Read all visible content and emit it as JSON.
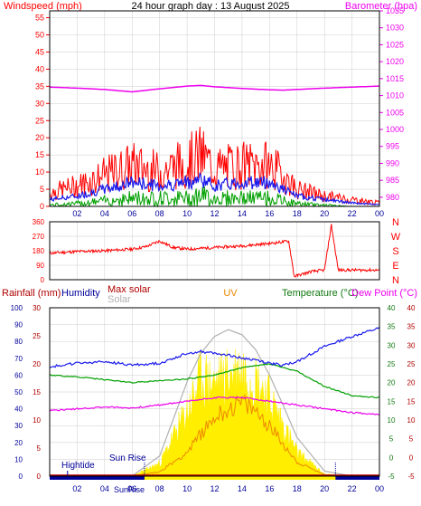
{
  "page": {
    "title": "24 hour graph day : 13 August 2025"
  },
  "colors": {
    "red": "#ff0000",
    "darkred": "#b00000",
    "magenta": "#ee00ee",
    "blue": "#1a1aee",
    "green": "#00a000",
    "darkgreen": "#107810",
    "navy": "#000099",
    "yellow": "#ffee00",
    "orange": "#ee8800",
    "gray": "#b0b0b0",
    "grid": "#cccccc"
  },
  "x_axis": {
    "ticks": [
      "02",
      "04",
      "06",
      "08",
      "10",
      "12",
      "14",
      "16",
      "18",
      "20",
      "22",
      "00"
    ]
  },
  "chart_data": [
    {
      "type": "line",
      "id": "wind-baro",
      "title": "24 hour graph day : 13 August 2025",
      "y_left_label": "Windspeed (mph)",
      "y_right_label": "Barometer (hpa)",
      "y_left_range": [
        0,
        57
      ],
      "y_left_ticks": [
        "55",
        "50",
        "45",
        "40",
        "35",
        "30",
        "25",
        "20",
        "15",
        "10",
        "5",
        "0"
      ],
      "y_left_tick_values": [
        55,
        50,
        45,
        40,
        35,
        30,
        25,
        20,
        15,
        10,
        5,
        0
      ],
      "y_right_range": [
        977.3,
        1035
      ],
      "y_right_ticks": [
        "1035",
        "1030",
        "1025",
        "1020",
        "1015",
        "1010",
        "1005",
        "1000",
        "995",
        "990",
        "985",
        "980"
      ],
      "y_right_tick_values": [
        1035,
        1030,
        1025,
        1020,
        1015,
        1010,
        1005,
        1000,
        995,
        990,
        985,
        980
      ],
      "x_hours": [
        0,
        2,
        4,
        6,
        8,
        10,
        11,
        12,
        14,
        16,
        17,
        18,
        20,
        22,
        24
      ],
      "series": [
        {
          "key": "barometer",
          "axis": "right",
          "values": [
            1012.5,
            1012.2,
            1011.8,
            1011.1,
            1012.0,
            1012.8,
            1013.0,
            1012.6,
            1012.1,
            1011.7,
            1011.6,
            1011.8,
            1012.2,
            1012.5,
            1012.8
          ]
        },
        {
          "key": "gust",
          "axis": "left",
          "values": [
            4,
            6,
            9,
            12,
            10,
            13,
            15,
            11,
            12,
            12,
            9,
            5,
            3,
            2,
            1
          ]
        },
        {
          "key": "average",
          "axis": "left",
          "values": [
            2,
            3,
            5,
            7,
            6,
            7,
            8,
            6,
            7,
            7,
            5,
            3,
            2,
            1,
            0.5
          ]
        },
        {
          "key": "low",
          "axis": "left",
          "values": [
            0.5,
            1,
            2,
            3,
            3,
            3,
            4,
            3,
            3,
            3,
            2,
            1,
            0.5,
            0,
            0
          ]
        }
      ]
    },
    {
      "type": "line",
      "id": "wind-direction",
      "y_left_ticks": [
        "360",
        "270",
        "180",
        "90",
        "0"
      ],
      "y_left_tick_values": [
        360,
        270,
        180,
        90,
        0
      ],
      "y_right_ticks": [
        "N",
        "W",
        "S",
        "E",
        "N"
      ],
      "y_range": [
        0,
        360
      ],
      "x_hours": [
        0,
        2,
        4,
        6,
        7,
        8,
        9,
        10,
        12,
        14,
        16,
        17.4,
        17.8,
        18.2,
        19,
        20,
        20.5,
        21,
        22,
        24
      ],
      "series": [
        {
          "key": "direction",
          "values": [
            165,
            175,
            180,
            190,
            205,
            240,
            200,
            190,
            200,
            210,
            225,
            240,
            20,
            30,
            50,
            60,
            340,
            60,
            60,
            60
          ]
        }
      ]
    },
    {
      "type": "line",
      "id": "rain-hum-solar-temp",
      "labels": {
        "rainfall": "Rainfall (mm)",
        "humidity": "Humidity",
        "max_solar": "Max solar",
        "solar": "Solar",
        "uv": "UV",
        "temperature": "Temperature (°C)",
        "dew_point": "Dew Point (°C)"
      },
      "humidity_ticks": [
        "100",
        "90",
        "80",
        "70",
        "60",
        "50",
        "40",
        "30",
        "20",
        "10",
        "0"
      ],
      "humidity_tick_values": [
        100,
        90,
        80,
        70,
        60,
        50,
        40,
        30,
        20,
        10,
        0
      ],
      "rain_ticks": [
        "30",
        "25",
        "20",
        "15",
        "10",
        "5",
        "0"
      ],
      "rain_tick_values": [
        30,
        25,
        20,
        15,
        10,
        5,
        0
      ],
      "temp_ticks": [
        "40",
        "35",
        "30",
        "25",
        "20",
        "15",
        "10",
        "5",
        "0",
        "-5"
      ],
      "temp_tick_values": [
        40,
        35,
        30,
        25,
        20,
        15,
        10,
        5,
        0,
        -5
      ],
      "temp_range": [
        -5,
        40
      ],
      "humidity_range": [
        0,
        100
      ],
      "x_hours": [
        0,
        2,
        4,
        6,
        8,
        10,
        11,
        12,
        13,
        14,
        15,
        16,
        17,
        18,
        20,
        22,
        24
      ],
      "series": [
        {
          "key": "humidity",
          "values": [
            65,
            67,
            68,
            66,
            67,
            73,
            74,
            73,
            72,
            70,
            69,
            67,
            66,
            68,
            77,
            83,
            88
          ]
        },
        {
          "key": "temperature",
          "values": [
            22.0,
            21.5,
            20.8,
            20.0,
            20.5,
            21.0,
            21.5,
            22.0,
            23.0,
            24.0,
            24.5,
            25.0,
            24.0,
            23.0,
            19.0,
            16.5,
            16.0
          ]
        },
        {
          "key": "dew_point",
          "values": [
            12.5,
            13.0,
            13.5,
            13.2,
            14.0,
            15.0,
            15.5,
            16.0,
            16.0,
            16.0,
            15.5,
            15.0,
            14.5,
            14.0,
            13.0,
            12.0,
            11.5
          ]
        },
        {
          "key": "max_solar",
          "values": [
            0,
            0,
            0,
            0,
            120,
            560,
            730,
            830,
            870,
            840,
            750,
            600,
            420,
            230,
            30,
            0,
            0
          ]
        },
        {
          "key": "solar",
          "values": [
            0,
            0,
            0,
            0,
            90,
            460,
            700,
            650,
            720,
            760,
            690,
            560,
            360,
            170,
            15,
            0,
            0
          ]
        },
        {
          "key": "uv",
          "values": [
            0,
            0,
            0,
            0,
            0.3,
            1.7,
            3.0,
            4.2,
            4.8,
            5.2,
            4.6,
            3.6,
            2.3,
            1.0,
            0.1,
            0,
            0
          ]
        }
      ],
      "annotations": {
        "hightide": "Hightide",
        "sunrise": "Sun Rise",
        "sunrise_bottom": "SunRise"
      },
      "markers": {
        "hightide_hour": 1.3,
        "sunrise_hour": 6.9,
        "sunset_hour": 20.8
      }
    }
  ]
}
